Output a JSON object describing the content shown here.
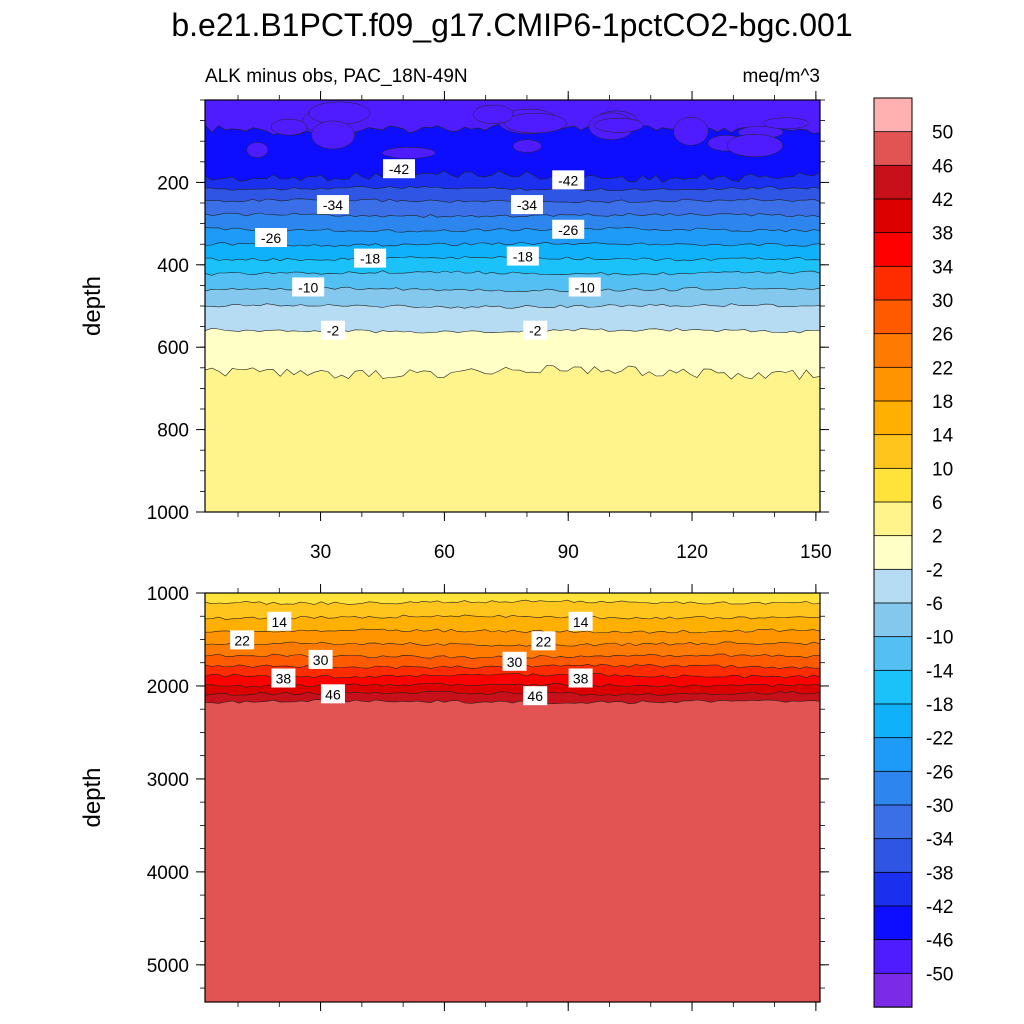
{
  "header": {
    "title": "b.e21.B1PCT.f09_g17.CMIP6-1pctCO2-bgc.001",
    "subtitle_left": "ALK minus obs, PAC_18N-49N",
    "subtitle_right": "meq/m^3"
  },
  "chart_data": {
    "type": "contour",
    "variable": "ALK minus obs",
    "region": "PAC_18N-49N",
    "units": "meq/m^3",
    "x_axis": {
      "ticks": [
        30,
        60,
        90,
        120,
        150
      ],
      "range": [
        2,
        151
      ]
    },
    "colorbar": {
      "levels": [
        -50,
        -46,
        -42,
        -38,
        -34,
        -30,
        -26,
        -22,
        -18,
        -14,
        -10,
        -6,
        -2,
        2,
        6,
        10,
        14,
        18,
        22,
        26,
        30,
        34,
        38,
        42,
        46,
        50
      ],
      "level_labels": [
        "-50",
        "-46",
        "-42",
        "-38",
        "-34",
        "-30",
        "-26",
        "-22",
        "-18",
        "-14",
        "-10",
        "-6",
        "-2",
        "2",
        "6",
        "10",
        "14",
        "18",
        "22",
        "26",
        "30",
        "34",
        "38",
        "42",
        "46",
        "50"
      ],
      "colors": [
        "#7b2be8",
        "#4f1cff",
        "#0d0dff",
        "#1a30ee",
        "#2e55e4",
        "#3a6fe8",
        "#2d86ee",
        "#1e9bf7",
        "#10b1fb",
        "#1bc2f9",
        "#52c0f2",
        "#84c8ee",
        "#b6dcf4",
        "#ffffc6",
        "#fff38c",
        "#ffe33a",
        "#ffc51c",
        "#ffb000",
        "#ff9400",
        "#ff7a00",
        "#ff5a00",
        "#ff2c00",
        "#ff0000",
        "#dd0000",
        "#c8101a",
        "#e25454",
        "#ffb1b1"
      ]
    },
    "panels": [
      {
        "name": "upper",
        "ylabel": "depth",
        "y_range": [
          0,
          1000
        ],
        "y_ticks": [
          200,
          400,
          600,
          800,
          1000
        ],
        "y_tick_labels": [
          "200",
          "400",
          "600",
          "800",
          "1000"
        ],
        "x_tick_labels": [
          "30",
          "60",
          "90",
          "120",
          "150"
        ],
        "bands": [
          {
            "upper_level": -46,
            "lower_depth": 70
          },
          {
            "upper_level": -42,
            "lower_depth": 185
          },
          {
            "upper_level": -38,
            "lower_depth": 215
          },
          {
            "upper_level": -34,
            "lower_depth": 245
          },
          {
            "upper_level": -30,
            "lower_depth": 280
          },
          {
            "upper_level": -26,
            "lower_depth": 315
          },
          {
            "upper_level": -22,
            "lower_depth": 350
          },
          {
            "upper_level": -18,
            "lower_depth": 385
          },
          {
            "upper_level": -14,
            "lower_depth": 420
          },
          {
            "upper_level": -10,
            "lower_depth": 460
          },
          {
            "upper_level": -6,
            "lower_depth": 500
          },
          {
            "upper_level": -2,
            "lower_depth": 560
          },
          {
            "upper_level": 2,
            "lower_depth": 660
          },
          {
            "upper_level": 6,
            "lower_depth": 1000
          }
        ],
        "contour_labels": [
          {
            "text": "-42",
            "x": 49,
            "depth": 168
          },
          {
            "text": "-42",
            "x": 90,
            "depth": 195
          },
          {
            "text": "-34",
            "x": 33,
            "depth": 255
          },
          {
            "text": "-34",
            "x": 80,
            "depth": 255
          },
          {
            "text": "-26",
            "x": 18,
            "depth": 335
          },
          {
            "text": "-26",
            "x": 90,
            "depth": 315
          },
          {
            "text": "-18",
            "x": 42,
            "depth": 385
          },
          {
            "text": "-18",
            "x": 79,
            "depth": 380
          },
          {
            "text": "-10",
            "x": 27,
            "depth": 455
          },
          {
            "text": "-10",
            "x": 94,
            "depth": 455
          },
          {
            "text": "-2",
            "x": 33,
            "depth": 560
          },
          {
            "text": "-2",
            "x": 82,
            "depth": 560
          }
        ]
      },
      {
        "name": "lower",
        "ylabel": "depth",
        "y_range": [
          1000,
          5400
        ],
        "y_ticks": [
          1000,
          2000,
          3000,
          4000,
          5000
        ],
        "y_tick_labels": [
          "1000",
          "2000",
          "3000",
          "4000",
          "5000"
        ],
        "bands": [
          {
            "upper_level": 10,
            "lower_depth": 1100
          },
          {
            "upper_level": 14,
            "lower_depth": 1260
          },
          {
            "upper_level": 18,
            "lower_depth": 1410
          },
          {
            "upper_level": 22,
            "lower_depth": 1550
          },
          {
            "upper_level": 26,
            "lower_depth": 1680
          },
          {
            "upper_level": 30,
            "lower_depth": 1790
          },
          {
            "upper_level": 34,
            "lower_depth": 1890
          },
          {
            "upper_level": 38,
            "lower_depth": 1990
          },
          {
            "upper_level": 42,
            "lower_depth": 2080
          },
          {
            "upper_level": 46,
            "lower_depth": 2170
          },
          {
            "upper_level": 50,
            "lower_depth": 5400
          }
        ],
        "contour_labels": [
          {
            "text": "14",
            "x": 20,
            "depth": 1310
          },
          {
            "text": "14",
            "x": 93,
            "depth": 1310
          },
          {
            "text": "22",
            "x": 11,
            "depth": 1510
          },
          {
            "text": "22",
            "x": 84,
            "depth": 1520
          },
          {
            "text": "30",
            "x": 30,
            "depth": 1720
          },
          {
            "text": "30",
            "x": 77,
            "depth": 1740
          },
          {
            "text": "38",
            "x": 21,
            "depth": 1920
          },
          {
            "text": "38",
            "x": 93,
            "depth": 1920
          },
          {
            "text": "46",
            "x": 33,
            "depth": 2090
          },
          {
            "text": "46",
            "x": 82,
            "depth": 2110
          }
        ]
      }
    ]
  }
}
